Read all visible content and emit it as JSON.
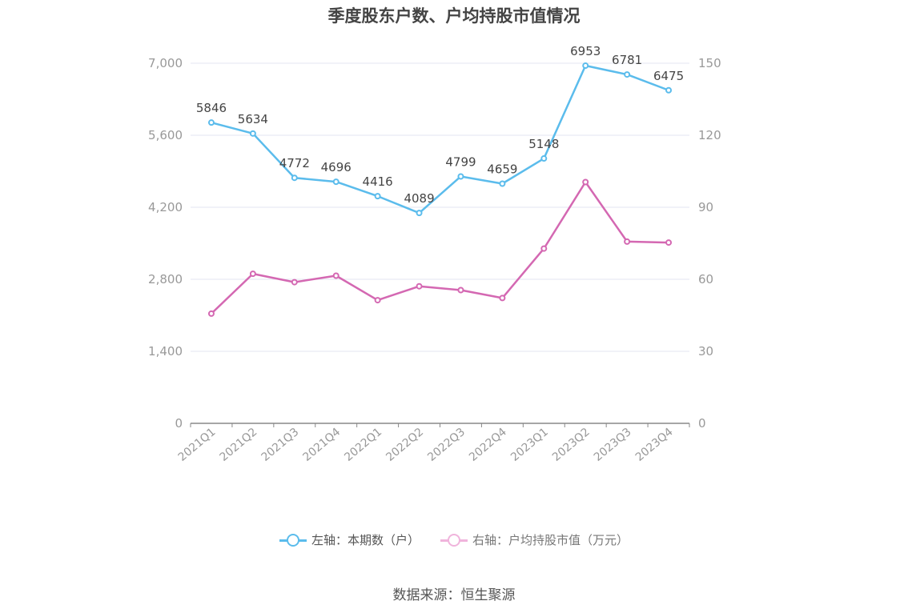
{
  "title": "季度股东户数、户均持股市值情况",
  "source": "数据来源：恒生聚源",
  "colors": {
    "left": "#5bbcec",
    "right": "#d468b2",
    "grid": "#e3e6f0",
    "axis": "#888888",
    "tick_text": "#999999"
  },
  "chart_data": {
    "type": "line",
    "categories": [
      "2021Q1",
      "2021Q2",
      "2021Q3",
      "2021Q4",
      "2022Q1",
      "2022Q2",
      "2022Q3",
      "2022Q4",
      "2023Q1",
      "2023Q2",
      "2023Q3",
      "2023Q4"
    ],
    "left_axis": {
      "min": 0,
      "max": 7000,
      "ticks": [
        "0",
        "1,400",
        "2,800",
        "4,200",
        "5,600",
        "7,000"
      ]
    },
    "right_axis": {
      "min": 0,
      "max": 150,
      "ticks": [
        "0",
        "30",
        "60",
        "90",
        "120",
        "150"
      ]
    },
    "series": [
      {
        "name": "左轴：本期数（户）",
        "axis": "left",
        "show_labels": true,
        "values": [
          5846,
          5634,
          4772,
          4696,
          4416,
          4089,
          4799,
          4659,
          5148,
          6953,
          6781,
          6475
        ]
      },
      {
        "name": "右轴：户均持股市值（万元）",
        "axis": "right",
        "show_labels": false,
        "values": [
          45.7,
          62.3,
          58.8,
          61.5,
          51.3,
          57.1,
          55.5,
          52.2,
          72.8,
          100.5,
          75.7,
          75.3
        ]
      }
    ],
    "grid": true,
    "legend_position": "bottom"
  }
}
